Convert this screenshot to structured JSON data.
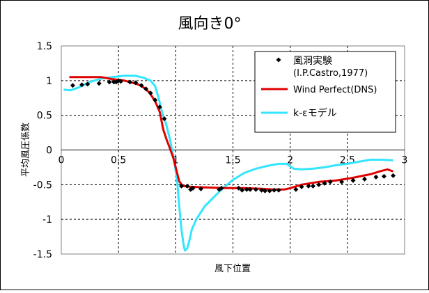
{
  "chart_data": {
    "type": "line",
    "title": "風向き0°",
    "xlabel": "風下位置",
    "ylabel": "平均風圧係数",
    "xlim": [
      0,
      3
    ],
    "ylim": [
      -1.5,
      1.5
    ],
    "x_ticks": [
      "0",
      "0.5",
      "1",
      "1.5",
      "2",
      "2.5",
      "3"
    ],
    "y_ticks": [
      "1.5",
      "1",
      "0.5",
      "0",
      "-0.5",
      "-1",
      "-1.5"
    ],
    "grid": "dashed",
    "legend_position": "top-right",
    "series": [
      {
        "name": "風洞実験",
        "sublabel": "(I.P.Castro,1977)",
        "style": "markers",
        "color": "#000000",
        "points": [
          [
            0.1,
            0.93
          ],
          [
            0.18,
            0.94
          ],
          [
            0.23,
            0.95
          ],
          [
            0.33,
            0.96
          ],
          [
            0.42,
            0.98
          ],
          [
            0.46,
            0.98
          ],
          [
            0.48,
            0.98
          ],
          [
            0.5,
            1.0
          ],
          [
            0.52,
            0.99
          ],
          [
            0.6,
            0.98
          ],
          [
            0.65,
            0.97
          ],
          [
            0.7,
            0.93
          ],
          [
            0.74,
            0.88
          ],
          [
            0.78,
            0.82
          ],
          [
            0.82,
            0.72
          ],
          [
            0.86,
            0.62
          ],
          [
            0.9,
            0.45
          ],
          [
            1.05,
            -0.52
          ],
          [
            1.1,
            -0.52
          ],
          [
            1.13,
            -0.57
          ],
          [
            1.15,
            -0.55
          ],
          [
            1.22,
            -0.56
          ],
          [
            1.38,
            -0.57
          ],
          [
            1.4,
            -0.55
          ],
          [
            1.55,
            -0.55
          ],
          [
            1.58,
            -0.58
          ],
          [
            1.62,
            -0.57
          ],
          [
            1.65,
            -0.57
          ],
          [
            1.7,
            -0.57
          ],
          [
            1.75,
            -0.58
          ],
          [
            1.78,
            -0.59
          ],
          [
            1.82,
            -0.59
          ],
          [
            1.86,
            -0.58
          ],
          [
            1.9,
            -0.58
          ],
          [
            2.05,
            -0.57
          ],
          [
            2.1,
            -0.53
          ],
          [
            2.16,
            -0.52
          ],
          [
            2.2,
            -0.52
          ],
          [
            2.25,
            -0.5
          ],
          [
            2.3,
            -0.48
          ],
          [
            2.35,
            -0.46
          ],
          [
            2.45,
            -0.46
          ],
          [
            2.55,
            -0.44
          ],
          [
            2.65,
            -0.42
          ],
          [
            2.75,
            -0.39
          ],
          [
            2.82,
            -0.38
          ],
          [
            2.9,
            -0.37
          ]
        ]
      },
      {
        "name": "Wind Perfect(DNS)",
        "style": "line",
        "color": "#e00000",
        "points": [
          [
            0.07,
            1.05
          ],
          [
            0.35,
            1.05
          ],
          [
            0.45,
            1.02
          ],
          [
            0.55,
            1.0
          ],
          [
            0.62,
            0.97
          ],
          [
            0.68,
            0.94
          ],
          [
            0.72,
            0.9
          ],
          [
            0.77,
            0.83
          ],
          [
            0.82,
            0.7
          ],
          [
            0.86,
            0.55
          ],
          [
            0.89,
            0.3
          ],
          [
            0.92,
            0.15
          ],
          [
            0.95,
            0.02
          ],
          [
            0.98,
            -0.12
          ],
          [
            1.0,
            -0.25
          ],
          [
            1.03,
            -0.45
          ],
          [
            1.06,
            -0.52
          ],
          [
            1.12,
            -0.53
          ],
          [
            1.25,
            -0.54
          ],
          [
            1.45,
            -0.55
          ],
          [
            1.6,
            -0.55
          ],
          [
            1.75,
            -0.56
          ],
          [
            1.85,
            -0.57
          ],
          [
            1.95,
            -0.57
          ],
          [
            2.0,
            -0.55
          ],
          [
            2.1,
            -0.5
          ],
          [
            2.25,
            -0.46
          ],
          [
            2.4,
            -0.44
          ],
          [
            2.55,
            -0.4
          ],
          [
            2.7,
            -0.35
          ],
          [
            2.8,
            -0.3
          ],
          [
            2.85,
            -0.28
          ],
          [
            2.9,
            -0.31
          ]
        ]
      },
      {
        "name": "k-εモデル",
        "style": "line",
        "color": "#33e5ff",
        "points": [
          [
            0.02,
            0.87
          ],
          [
            0.08,
            0.86
          ],
          [
            0.15,
            0.9
          ],
          [
            0.25,
            0.98
          ],
          [
            0.35,
            1.03
          ],
          [
            0.45,
            1.05
          ],
          [
            0.55,
            1.07
          ],
          [
            0.65,
            1.07
          ],
          [
            0.72,
            1.04
          ],
          [
            0.78,
            1.0
          ],
          [
            0.82,
            0.92
          ],
          [
            0.85,
            0.75
          ],
          [
            0.88,
            0.55
          ],
          [
            0.92,
            0.35
          ],
          [
            0.95,
            0.15
          ],
          [
            0.98,
            -0.1
          ],
          [
            1.01,
            -0.4
          ],
          [
            1.03,
            -0.8
          ],
          [
            1.05,
            -1.15
          ],
          [
            1.07,
            -1.38
          ],
          [
            1.08,
            -1.45
          ],
          [
            1.1,
            -1.42
          ],
          [
            1.12,
            -1.3
          ],
          [
            1.14,
            -1.15
          ],
          [
            1.18,
            -1.0
          ],
          [
            1.25,
            -0.82
          ],
          [
            1.32,
            -0.7
          ],
          [
            1.4,
            -0.57
          ],
          [
            1.5,
            -0.43
          ],
          [
            1.6,
            -0.33
          ],
          [
            1.7,
            -0.27
          ],
          [
            1.8,
            -0.23
          ],
          [
            1.9,
            -0.2
          ],
          [
            1.97,
            -0.2
          ],
          [
            2.03,
            -0.27
          ],
          [
            2.1,
            -0.28
          ],
          [
            2.2,
            -0.27
          ],
          [
            2.3,
            -0.25
          ],
          [
            2.4,
            -0.22
          ],
          [
            2.5,
            -0.2
          ],
          [
            2.6,
            -0.17
          ],
          [
            2.7,
            -0.14
          ],
          [
            2.8,
            -0.14
          ],
          [
            2.9,
            -0.15
          ]
        ]
      }
    ]
  }
}
